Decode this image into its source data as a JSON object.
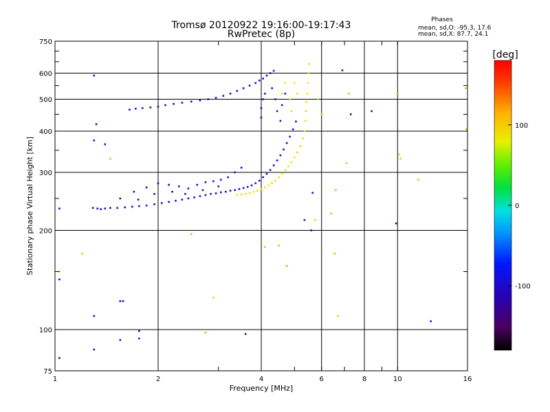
{
  "chart_data": {
    "type": "scatter",
    "title": "Tromsø 20120922 19:16:00-19:17:43",
    "subtitle": "RwPretec (8p)",
    "xlabel": "Frequency [MHz]",
    "ylabel": "Stationary phase Virtual Height [km]",
    "x_scale": "log",
    "y_scale": "log",
    "xlim": [
      1,
      16
    ],
    "ylim": [
      75,
      750
    ],
    "x_ticks": [
      1,
      2,
      4,
      6,
      8,
      10,
      16
    ],
    "x_tick_labels": [
      "1",
      "2",
      "4",
      "6",
      "8",
      "10",
      "16"
    ],
    "x_minor_ticks": [
      3,
      5,
      7,
      9
    ],
    "x_gridlines": [
      2,
      4,
      6,
      8,
      10
    ],
    "y_ticks": [
      75,
      100,
      200,
      300,
      400,
      500,
      600,
      750
    ],
    "y_tick_labels": [
      "75",
      "100",
      "200",
      "300",
      "400",
      "500",
      "600",
      "750"
    ],
    "y_minor_ticks": [
      150,
      250,
      350,
      450,
      550,
      650,
      700
    ],
    "y_gridlines": [
      100,
      200,
      300,
      400,
      500,
      600
    ],
    "phase_annotation": {
      "heading": "Phases",
      "line_o": "mean, sd,O: -95.3, 17.6",
      "line_x": "mean, sd,X:  87.7, 24.1"
    },
    "colorbar": {
      "label": "[deg]",
      "range": [
        -180,
        180
      ],
      "ticks": [
        100,
        0,
        -100
      ],
      "tick_labels": [
        "100",
        "0",
        "-100"
      ],
      "colormap": "rainbow: black(-180) → purple → blue → cyan → green → yellow → orange → red(180)"
    },
    "series": [
      {
        "name": "O-mode trace (lower, blue)",
        "phase_deg": -95,
        "points": [
          [
            1.29,
            234
          ],
          [
            1.33,
            233
          ],
          [
            1.36,
            232
          ],
          [
            1.4,
            233
          ],
          [
            1.45,
            234
          ],
          [
            1.52,
            234
          ],
          [
            1.6,
            235
          ],
          [
            1.68,
            236
          ],
          [
            1.76,
            237
          ],
          [
            1.85,
            238
          ],
          [
            1.95,
            240
          ],
          [
            2.05,
            242
          ],
          [
            2.15,
            244
          ],
          [
            2.25,
            246
          ],
          [
            2.35,
            248
          ],
          [
            2.45,
            250
          ],
          [
            2.55,
            252
          ],
          [
            2.65,
            254
          ],
          [
            2.75,
            256
          ],
          [
            2.85,
            258
          ],
          [
            2.95,
            259
          ],
          [
            3.05,
            261
          ],
          [
            3.15,
            262
          ],
          [
            3.25,
            264
          ],
          [
            3.35,
            265
          ],
          [
            3.45,
            267
          ],
          [
            3.55,
            269
          ],
          [
            3.65,
            271
          ],
          [
            3.75,
            274
          ],
          [
            3.85,
            278
          ],
          [
            3.95,
            283
          ],
          [
            4.05,
            290
          ],
          [
            4.15,
            297
          ],
          [
            4.25,
            305
          ],
          [
            4.35,
            315
          ],
          [
            4.45,
            326
          ],
          [
            4.55,
            338
          ],
          [
            4.65,
            352
          ],
          [
            4.75,
            368
          ],
          [
            4.85,
            385
          ],
          [
            4.95,
            405
          ],
          [
            5.05,
            428
          ]
        ]
      },
      {
        "name": "O-mode trace (upper, blue)",
        "phase_deg": -95,
        "points": [
          [
            1.65,
            465
          ],
          [
            1.72,
            468
          ],
          [
            1.8,
            470
          ],
          [
            1.9,
            472
          ],
          [
            2.0,
            475
          ],
          [
            2.1,
            480
          ],
          [
            2.22,
            484
          ],
          [
            2.35,
            488
          ],
          [
            2.5,
            492
          ],
          [
            2.65,
            496
          ],
          [
            2.8,
            500
          ],
          [
            2.95,
            505
          ],
          [
            3.1,
            512
          ],
          [
            3.25,
            520
          ],
          [
            3.4,
            530
          ],
          [
            3.55,
            540
          ],
          [
            3.7,
            550
          ],
          [
            3.85,
            560
          ],
          [
            3.95,
            570
          ],
          [
            4.05,
            578
          ],
          [
            4.15,
            590
          ],
          [
            4.25,
            600
          ],
          [
            4.35,
            610
          ]
        ]
      },
      {
        "name": "O-mode scattered echoes (blue)",
        "phase_deg": -100,
        "points": [
          [
            1.55,
            250
          ],
          [
            1.7,
            262
          ],
          [
            1.85,
            270
          ],
          [
            2.0,
            278
          ],
          [
            2.15,
            275
          ],
          [
            2.3,
            272
          ],
          [
            2.45,
            268
          ],
          [
            2.6,
            275
          ],
          [
            2.75,
            280
          ],
          [
            2.9,
            282
          ],
          [
            3.05,
            285
          ],
          [
            3.2,
            290
          ],
          [
            3.35,
            300
          ],
          [
            3.5,
            310
          ],
          [
            1.75,
            248
          ],
          [
            1.95,
            258
          ],
          [
            2.2,
            262
          ],
          [
            2.4,
            258
          ],
          [
            2.7,
            265
          ],
          [
            3.0,
            272
          ],
          [
            4.0,
            440
          ],
          [
            4.0,
            470
          ],
          [
            4.05,
            500
          ],
          [
            4.1,
            520
          ],
          [
            4.3,
            540
          ],
          [
            4.4,
            500
          ],
          [
            4.45,
            460
          ],
          [
            4.55,
            430
          ],
          [
            4.6,
            480
          ],
          [
            4.7,
            520
          ],
          [
            1.3,
            590
          ],
          [
            1.3,
            375
          ],
          [
            1.32,
            420
          ],
          [
            1.4,
            365
          ],
          [
            1.3,
            110
          ],
          [
            1.55,
            122
          ],
          [
            1.58,
            122
          ],
          [
            1.76,
            99
          ],
          [
            1.76,
            94
          ],
          [
            1.55,
            93
          ],
          [
            3.6,
            97
          ],
          [
            1.3,
            87
          ],
          [
            1.03,
            82
          ],
          [
            1.03,
            142
          ],
          [
            1.03,
            233
          ],
          [
            5.35,
            215
          ],
          [
            5.6,
            200
          ],
          [
            5.65,
            260
          ],
          [
            6.9,
            612
          ],
          [
            7.3,
            450
          ],
          [
            8.4,
            460
          ],
          [
            9.9,
            210
          ],
          [
            12.5,
            106
          ]
        ]
      },
      {
        "name": "X-mode trace (yellow-green)",
        "phase_deg": 88,
        "points": [
          [
            3.4,
            256
          ],
          [
            3.5,
            257
          ],
          [
            3.6,
            258
          ],
          [
            3.7,
            260
          ],
          [
            3.8,
            262
          ],
          [
            3.9,
            264
          ],
          [
            4.0,
            267
          ],
          [
            4.1,
            270
          ],
          [
            4.2,
            274
          ],
          [
            4.3,
            278
          ],
          [
            4.4,
            283
          ],
          [
            4.5,
            290
          ],
          [
            4.6,
            297
          ],
          [
            4.7,
            305
          ],
          [
            4.8,
            313
          ],
          [
            4.9,
            322
          ],
          [
            5.0,
            333
          ],
          [
            5.1,
            345
          ],
          [
            5.2,
            360
          ],
          [
            5.3,
            380
          ],
          [
            5.35,
            400
          ],
          [
            5.38,
            430
          ],
          [
            5.4,
            460
          ],
          [
            5.42,
            490
          ],
          [
            5.45,
            520
          ],
          [
            5.48,
            560
          ],
          [
            5.5,
            600
          ],
          [
            5.52,
            640
          ],
          [
            4.6,
            520
          ],
          [
            4.7,
            560
          ],
          [
            4.85,
            500
          ],
          [
            4.9,
            460
          ],
          [
            5.1,
            520
          ],
          [
            5.0,
            560
          ]
        ]
      },
      {
        "name": "X-mode scattered echoes (mixed colors)",
        "phase_deg": 60,
        "points": [
          [
            1.03,
            150
          ],
          [
            1.2,
            170
          ],
          [
            1.45,
            330
          ],
          [
            2.5,
            195
          ],
          [
            2.75,
            98
          ],
          [
            2.9,
            125
          ],
          [
            4.1,
            178
          ],
          [
            4.5,
            180
          ],
          [
            4.75,
            156
          ],
          [
            5.75,
            215
          ],
          [
            6.4,
            225
          ],
          [
            6.55,
            170
          ],
          [
            6.6,
            265
          ],
          [
            6.7,
            110
          ],
          [
            7.1,
            320
          ],
          [
            7.2,
            520
          ],
          [
            10.0,
            520
          ],
          [
            10.1,
            340
          ],
          [
            10.2,
            330
          ],
          [
            11.5,
            285
          ],
          [
            15.8,
            540
          ],
          [
            15.9,
            405
          ],
          [
            6.0,
            450
          ],
          [
            5.85,
            500
          ]
        ]
      }
    ]
  }
}
